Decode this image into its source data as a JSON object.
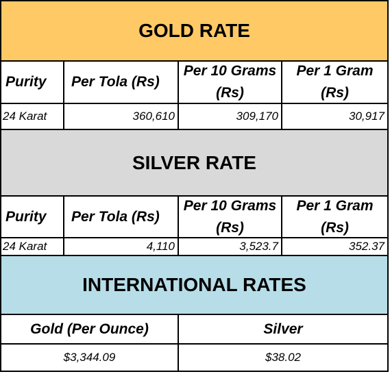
{
  "gold": {
    "title": "GOLD RATE",
    "title_bg": "#FFC966",
    "headers": [
      "Purity",
      "Per Tola (Rs)",
      "Per 10 Grams (Rs)",
      "Per 1 Gram (Rs)"
    ],
    "row": [
      "24 Karat",
      "360,610",
      "309,170",
      "30,917"
    ]
  },
  "silver": {
    "title": "SILVER RATE",
    "title_bg": "#D9D9D9",
    "headers": [
      "Purity",
      "Per Tola (Rs)",
      "Per 10 Grams (Rs)",
      "Per 1 Gram (Rs)"
    ],
    "row": [
      "24 Karat",
      "4,110",
      "3,523.7",
      "352.37"
    ]
  },
  "international": {
    "title": "INTERNATIONAL RATES",
    "title_bg": "#B7DDE8",
    "headers": [
      "Gold (Per Ounce)",
      "Silver"
    ],
    "row": [
      "$3,344.09",
      "$38.02"
    ]
  }
}
